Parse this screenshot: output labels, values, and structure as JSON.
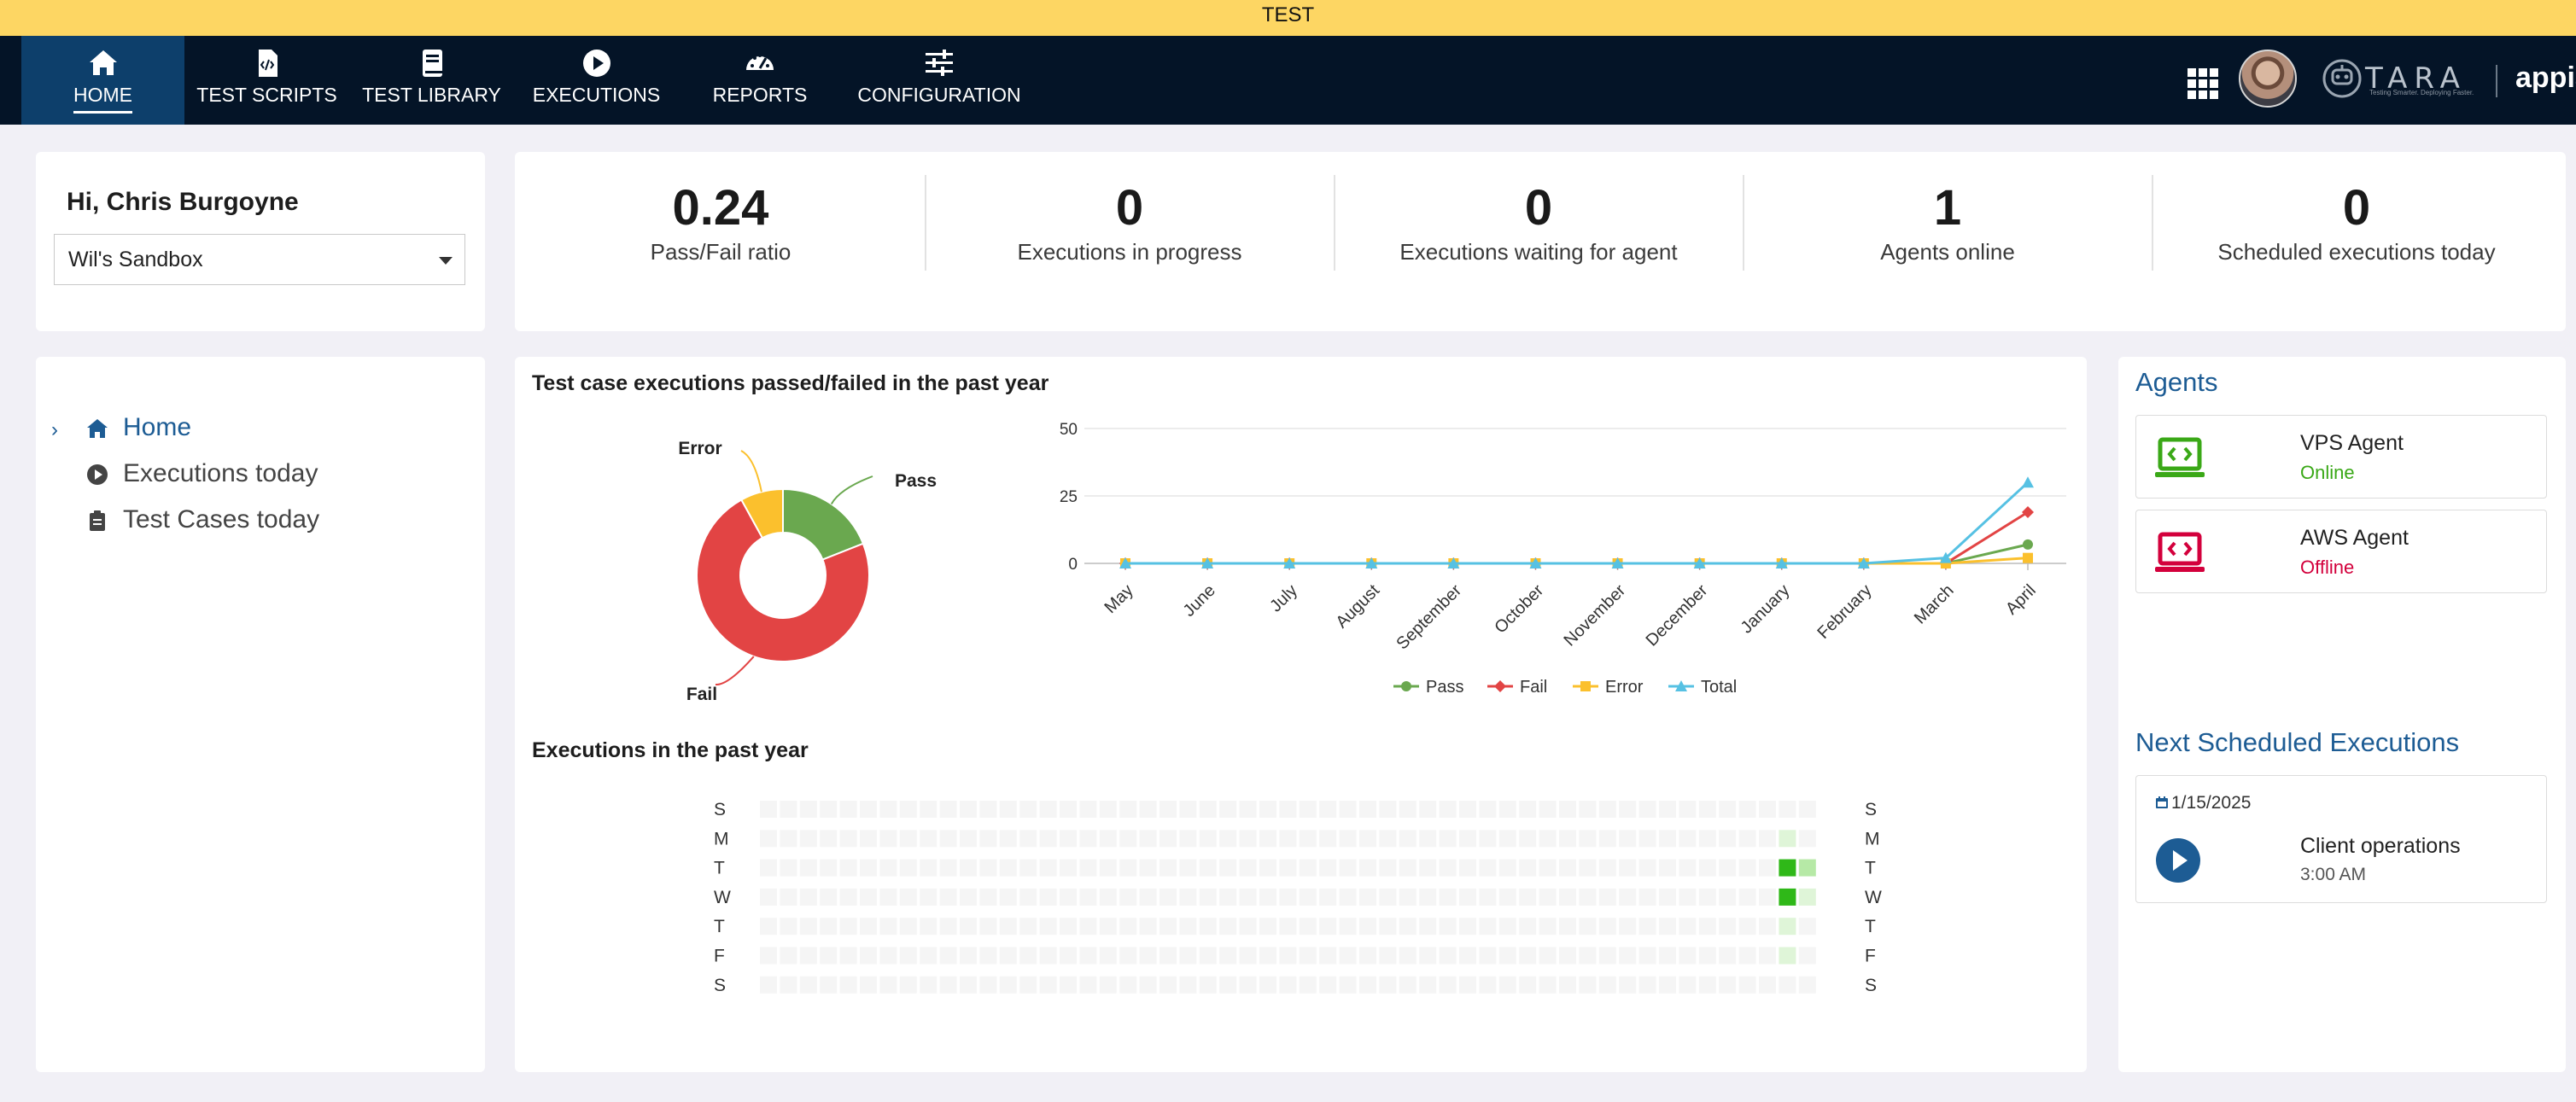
{
  "environment_banner": "TEST",
  "nav": {
    "items": [
      {
        "label": "HOME",
        "icon": "home-icon",
        "active": true
      },
      {
        "label": "TEST SCRIPTS",
        "icon": "code-file-icon"
      },
      {
        "label": "TEST LIBRARY",
        "icon": "book-icon"
      },
      {
        "label": "EXECUTIONS",
        "icon": "play-circle-icon"
      },
      {
        "label": "REPORTS",
        "icon": "gauge-icon"
      },
      {
        "label": "CONFIGURATION",
        "icon": "sliders-icon"
      }
    ],
    "right": {
      "apps_icon": "grid-icon",
      "avatar": "user-avatar",
      "logo_text": "TARA",
      "logo_tagline": "Testing Smarter. Deploying Faster.",
      "brand": "appian"
    }
  },
  "greeting": "Hi, Chris Burgoyne",
  "application_select": {
    "value": "Wil's Sandbox"
  },
  "kpis": [
    {
      "value": "0.24",
      "label": "Pass/Fail ratio"
    },
    {
      "value": "0",
      "label": "Executions in progress"
    },
    {
      "value": "0",
      "label": "Executions waiting for agent"
    },
    {
      "value": "1",
      "label": "Agents online"
    },
    {
      "value": "0",
      "label": "Scheduled executions today"
    }
  ],
  "sidebar": {
    "items": [
      {
        "label": "Home",
        "icon": "home-icon",
        "active": true
      },
      {
        "label": "Executions today",
        "icon": "play-circle-icon"
      },
      {
        "label": "Test Cases today",
        "icon": "clipboard-icon"
      }
    ]
  },
  "executions_chart_title": "Test case executions passed/failed in the past year",
  "heatmap_title": "Executions in the past year",
  "colors": {
    "pass": "#6aa84f",
    "fail": "#e24444",
    "error": "#fbc02d",
    "total": "#56c1e3",
    "brand_blue": "#1d5c94",
    "nav_bg": "#041427"
  },
  "chart_data": [
    {
      "type": "pie",
      "variant": "donut",
      "title": "",
      "labels": [
        "Pass",
        "Fail",
        "Error"
      ],
      "values": [
        19,
        73,
        8
      ],
      "colors": [
        "#6aa84f",
        "#e24444",
        "#fbc02d"
      ]
    },
    {
      "type": "line",
      "title": "",
      "categories": [
        "May",
        "June",
        "July",
        "August",
        "September",
        "October",
        "November",
        "December",
        "January",
        "February",
        "March",
        "April"
      ],
      "series": [
        {
          "name": "Pass",
          "marker": "circle",
          "color": "#6aa84f",
          "values": [
            0,
            0,
            0,
            0,
            0,
            0,
            0,
            0,
            0,
            0,
            0,
            7
          ]
        },
        {
          "name": "Fail",
          "marker": "diamond",
          "color": "#e24444",
          "values": [
            0,
            0,
            0,
            0,
            0,
            0,
            0,
            0,
            0,
            0,
            0,
            19
          ]
        },
        {
          "name": "Error",
          "marker": "square",
          "color": "#fbc02d",
          "values": [
            0,
            0,
            0,
            0,
            0,
            0,
            0,
            0,
            0,
            0,
            0,
            2
          ]
        },
        {
          "name": "Total",
          "marker": "triangle",
          "color": "#56c1e3",
          "values": [
            0,
            0,
            0,
            0,
            0,
            0,
            0,
            0,
            0,
            0,
            2,
            30
          ]
        }
      ],
      "yticks": [
        0,
        25,
        50
      ],
      "ylim": [
        0,
        50
      ],
      "legend": "bottom"
    },
    {
      "type": "heatmap",
      "title": "",
      "day_labels": [
        "S",
        "M",
        "T",
        "W",
        "T",
        "F",
        "S"
      ],
      "weeks": 53,
      "active_cells": [
        {
          "week": 51,
          "day": 1,
          "level": 1
        },
        {
          "week": 51,
          "day": 2,
          "level": 4
        },
        {
          "week": 52,
          "day": 2,
          "level": 2
        },
        {
          "week": 51,
          "day": 3,
          "level": 4
        },
        {
          "week": 52,
          "day": 3,
          "level": 1
        },
        {
          "week": 51,
          "day": 4,
          "level": 1
        },
        {
          "week": 51,
          "day": 5,
          "level": 1
        }
      ]
    }
  ],
  "agents_panel": {
    "title": "Agents",
    "agents": [
      {
        "name": "VPS Agent",
        "status": "Online",
        "status_color": "#3aa817",
        "icon_color": "#3aa817"
      },
      {
        "name": "AWS Agent",
        "status": "Offline",
        "status_color": "#d3003c",
        "icon_color": "#d3003c"
      }
    ]
  },
  "next_scheduled": {
    "title": "Next Scheduled Executions",
    "items": [
      {
        "date": "1/15/2025",
        "name": "Client operations",
        "time": "3:00 AM"
      }
    ]
  }
}
